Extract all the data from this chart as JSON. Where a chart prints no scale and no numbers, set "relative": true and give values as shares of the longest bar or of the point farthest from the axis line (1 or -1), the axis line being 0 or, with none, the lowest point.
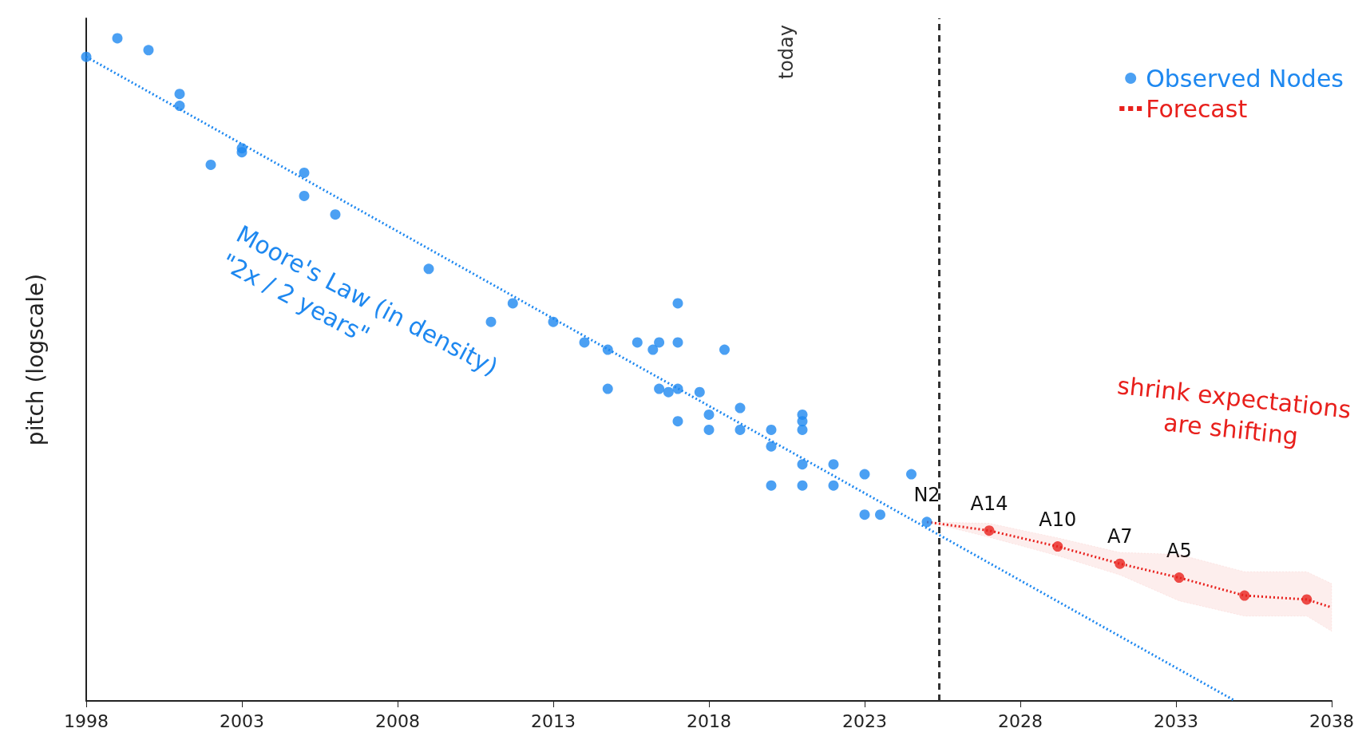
{
  "chart_data": {
    "type": "scatter",
    "relative": true,
    "ylabel": "pitch (logscale)",
    "xlim": [
      1998,
      2038
    ],
    "xticks": [
      1998,
      2003,
      2008,
      2013,
      2018,
      2023,
      2028,
      2033,
      2038
    ],
    "legend": "top right",
    "grid": false,
    "marker": "circle",
    "series": [
      {
        "name": "Observed Nodes",
        "color": "#1e88f0",
        "x": [
          1998,
          1999,
          2000,
          2001,
          2001,
          2002,
          2003,
          2003,
          2005,
          2005,
          2006,
          2009,
          2011,
          2011.7,
          2013,
          2014,
          2014.75,
          2014.75,
          2015.7,
          2016.2,
          2016.4,
          2016.4,
          2016.7,
          2017,
          2017,
          2017,
          2017,
          2017.7,
          2018,
          2018,
          2018.5,
          2019,
          2019,
          2020,
          2020,
          2020,
          2021,
          2021,
          2021,
          2021,
          2021,
          2022,
          2022,
          2023,
          2023,
          2023.5,
          2024.5,
          2025
        ],
        "values": [
          0.972,
          1,
          0.982,
          0.916,
          0.898,
          0.809,
          0.834,
          0.828,
          0.797,
          0.762,
          0.734,
          0.652,
          0.572,
          0.6,
          0.572,
          0.541,
          0.53,
          0.471,
          0.541,
          0.53,
          0.541,
          0.471,
          0.466,
          0.6,
          0.541,
          0.471,
          0.422,
          0.466,
          0.432,
          0.409,
          0.53,
          0.442,
          0.409,
          0.409,
          0.384,
          0.325,
          0.432,
          0.422,
          0.409,
          0.357,
          0.325,
          0.357,
          0.325,
          0.342,
          0.281,
          0.281,
          0.342,
          0.27
        ]
      },
      {
        "type": "line",
        "color": "#1e88f0",
        "line_style": "dotted",
        "marker": "none",
        "x": [
          1998,
          2034.9
        ],
        "values": [
          0.972,
          0
        ]
      },
      {
        "name": "Forecast",
        "type": "line",
        "color": "#e8201c",
        "line_style": "dotted",
        "marker": "none",
        "x": [
          2025,
          2027,
          2029.2,
          2031.2,
          2033.1,
          2035.2,
          2037.2,
          2038
        ],
        "values": [
          0.27,
          0.257,
          0.233,
          0.207,
          0.186,
          0.159,
          0.153,
          0.141
        ],
        "lower": [
          0.27,
          0.247,
          0.219,
          0.19,
          0.151,
          0.128,
          0.128,
          0.105
        ],
        "upper": [
          0.27,
          0.268,
          0.246,
          0.224,
          0.221,
          0.195,
          0.195,
          0.177
        ]
      },
      {
        "color": "#e8201c",
        "x": [
          2027,
          2029.2,
          2031.2,
          2033.1,
          2035.2,
          2037.2
        ],
        "values": [
          0.257,
          0.233,
          0.207,
          0.186,
          0.159,
          0.153
        ]
      }
    ],
    "ref_lines": [
      {
        "axis": "x",
        "value": 2025.4,
        "label": "today",
        "color": "#333333",
        "line_style": "dashed"
      }
    ],
    "annotations": [
      {
        "text": "N2",
        "x": 2025,
        "y": 0.27
      },
      {
        "text": "A14",
        "x": 2027,
        "y": 0.257
      },
      {
        "text": "A10",
        "x": 2029.2,
        "y": 0.233
      },
      {
        "text": "A7",
        "x": 2031.2,
        "y": 0.207
      },
      {
        "text": "A5",
        "x": 2033.1,
        "y": 0.186
      },
      "Moore's Law (in density)\n\"2x / 2 years\"",
      "shrink expectations\nare shifting"
    ]
  }
}
